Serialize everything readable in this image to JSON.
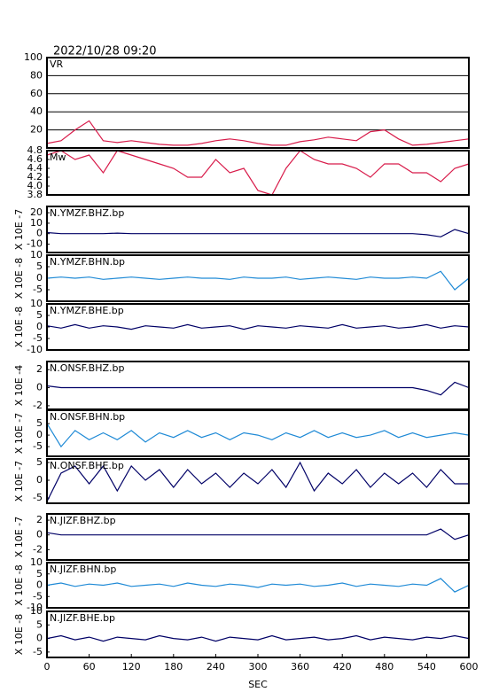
{
  "chart_data": [
    {
      "type": "line",
      "title": "2022/10/28 09:20",
      "label": "VR",
      "color": "#d81b4a",
      "grid": true,
      "x": [
        0,
        20,
        40,
        60,
        80,
        100,
        120,
        140,
        160,
        180,
        200,
        220,
        240,
        260,
        280,
        300,
        320,
        340,
        360,
        380,
        400,
        420,
        440,
        460,
        480,
        500,
        520,
        540,
        560,
        580,
        600
      ],
      "values": [
        5,
        8,
        20,
        30,
        8,
        6,
        8,
        6,
        4,
        3,
        3,
        5,
        8,
        10,
        8,
        5,
        3,
        3,
        7,
        9,
        12,
        10,
        8,
        18,
        20,
        10,
        3,
        4,
        6,
        8,
        10
      ],
      "xlim": [
        0,
        600
      ],
      "ylim": [
        0,
        100
      ],
      "yticks": [
        20,
        40,
        60,
        80,
        100
      ]
    },
    {
      "type": "line",
      "label": "Mw",
      "color": "#d81b4a",
      "x": [
        0,
        20,
        40,
        60,
        80,
        100,
        120,
        140,
        160,
        180,
        200,
        220,
        240,
        260,
        280,
        300,
        320,
        340,
        360,
        380,
        400,
        420,
        440,
        460,
        480,
        500,
        520,
        540,
        560,
        580,
        600
      ],
      "values": [
        4.7,
        4.8,
        4.6,
        4.7,
        4.3,
        4.8,
        4.7,
        4.6,
        4.5,
        4.4,
        4.2,
        4.2,
        4.6,
        4.3,
        4.4,
        3.9,
        3.8,
        4.4,
        4.8,
        4.6,
        4.5,
        4.5,
        4.4,
        4.2,
        4.5,
        4.5,
        4.3,
        4.3,
        4.1,
        4.4,
        4.5
      ],
      "xlim": [
        0,
        600
      ],
      "ylim": [
        3.8,
        4.8
      ],
      "yticks": [
        3.8,
        {
          "value": 4,
          "label": "4.0"
        },
        4.2,
        4.4,
        4.6,
        4.8
      ]
    },
    {
      "type": "line",
      "label": "N.YMZF.BHZ.bp",
      "ylabel": "X 10E -7",
      "color": "#000066",
      "x": [
        0,
        20,
        40,
        60,
        80,
        100,
        120,
        140,
        160,
        180,
        200,
        220,
        240,
        260,
        280,
        300,
        320,
        340,
        360,
        380,
        400,
        420,
        440,
        460,
        480,
        500,
        520,
        540,
        560,
        580,
        600
      ],
      "values": [
        1,
        0,
        0,
        0,
        0,
        0.5,
        0,
        0,
        0,
        0,
        0,
        0,
        0,
        0,
        0,
        0,
        0,
        0,
        0,
        0,
        0,
        0,
        0,
        0,
        0,
        0,
        0,
        -1,
        -3,
        4,
        0
      ],
      "xlim": [
        0,
        600
      ],
      "ylim": [
        -18,
        26
      ],
      "yticks": [
        -10,
        0,
        10,
        20
      ]
    },
    {
      "type": "line",
      "label": "N.YMZF.BHN.bp",
      "ylabel": "X 10E -8",
      "color": "#1f8ad6",
      "x": [
        0,
        20,
        40,
        60,
        80,
        100,
        120,
        140,
        160,
        180,
        200,
        220,
        240,
        260,
        280,
        300,
        320,
        340,
        360,
        380,
        400,
        420,
        440,
        460,
        480,
        500,
        520,
        540,
        560,
        580,
        600
      ],
      "values": [
        0,
        0.5,
        0,
        0.5,
        -0.5,
        0,
        0.5,
        0,
        -0.5,
        0,
        0.5,
        0,
        0,
        -0.5,
        0.5,
        0,
        0,
        0.5,
        -0.5,
        0,
        0.5,
        0,
        -0.5,
        0.5,
        0,
        0,
        0.5,
        0,
        3,
        -5,
        0
      ],
      "xlim": [
        0,
        600
      ],
      "ylim": [
        -10,
        10
      ],
      "yticks": [
        -5,
        0,
        5,
        10
      ]
    },
    {
      "type": "line",
      "label": "N.YMZF.BHE.bp",
      "ylabel": "X 10E -8",
      "color": "#000066",
      "x": [
        0,
        20,
        40,
        60,
        80,
        100,
        120,
        140,
        160,
        180,
        200,
        220,
        240,
        260,
        280,
        300,
        320,
        340,
        360,
        380,
        400,
        420,
        440,
        460,
        480,
        500,
        520,
        540,
        560,
        580,
        600
      ],
      "values": [
        0.5,
        -0.5,
        1,
        -0.5,
        0.5,
        0,
        -1,
        0.5,
        0,
        -0.5,
        1,
        -0.5,
        0,
        0.5,
        -1,
        0.5,
        0,
        -0.5,
        0.5,
        0,
        -0.5,
        1,
        -0.5,
        0,
        0.5,
        -0.5,
        0,
        1,
        -0.5,
        0.5,
        0
      ],
      "xlim": [
        0,
        600
      ],
      "ylim": [
        -10,
        10
      ],
      "yticks": [
        -10,
        -5,
        0,
        5,
        10
      ]
    },
    {
      "type": "line",
      "label": "N.ONSF.BHZ.bp",
      "ylabel": "X 10E -4",
      "color": "#000066",
      "x": [
        0,
        20,
        40,
        60,
        80,
        100,
        120,
        140,
        160,
        180,
        200,
        220,
        240,
        260,
        280,
        300,
        320,
        340,
        360,
        380,
        400,
        420,
        440,
        460,
        480,
        500,
        520,
        540,
        560,
        580,
        600
      ],
      "values": [
        0.2,
        0,
        0,
        0,
        0,
        0,
        0,
        0,
        0,
        0,
        0,
        0,
        0,
        0,
        0,
        0,
        0,
        0,
        0,
        0,
        0,
        0,
        0,
        0,
        0,
        0,
        0,
        -0.3,
        -0.8,
        0.6,
        0
      ],
      "xlim": [
        0,
        600
      ],
      "ylim": [
        -2.4,
        2.9
      ],
      "yticks": [
        -2,
        0,
        2
      ]
    },
    {
      "type": "line",
      "label": "N.ONSF.BHN.bp",
      "ylabel": "X 10E -7",
      "color": "#1f8ad6",
      "x": [
        0,
        20,
        40,
        60,
        80,
        100,
        120,
        140,
        160,
        180,
        200,
        220,
        240,
        260,
        280,
        300,
        320,
        340,
        360,
        380,
        400,
        420,
        440,
        460,
        480,
        500,
        520,
        540,
        560,
        580,
        600
      ],
      "values": [
        5,
        -5,
        2,
        -2,
        1,
        -2,
        2,
        -3,
        1,
        -1,
        2,
        -1,
        1,
        -2,
        1,
        0,
        -2,
        1,
        -1,
        2,
        -1,
        1,
        -1,
        0,
        2,
        -1,
        1,
        -1,
        0,
        1,
        0
      ],
      "xlim": [
        0,
        600
      ],
      "ylim": [
        -9.2,
        10.8
      ],
      "yticks": [
        -5,
        0,
        5
      ]
    },
    {
      "type": "line",
      "label": "N.ONSF.BHE.bp",
      "ylabel": "X 10E -7",
      "color": "#000066",
      "x": [
        0,
        20,
        40,
        60,
        80,
        100,
        120,
        140,
        160,
        180,
        200,
        220,
        240,
        260,
        280,
        300,
        320,
        340,
        360,
        380,
        400,
        420,
        440,
        460,
        480,
        500,
        520,
        540,
        560,
        580,
        600
      ],
      "values": [
        -6,
        2,
        4,
        -1,
        4,
        -3,
        4,
        0,
        3,
        -2,
        3,
        -1,
        2,
        -2,
        2,
        -1,
        3,
        -2,
        5,
        -3,
        2,
        -1,
        3,
        -2,
        2,
        -1,
        2,
        -2,
        3,
        -1,
        -1
      ],
      "xlim": [
        0,
        600
      ],
      "ylim": [
        -6.5,
        6
      ],
      "yticks": [
        -5,
        0,
        5
      ]
    },
    {
      "type": "line",
      "label": "N.JIZF.BHZ.bp",
      "ylabel": "X 10E -7",
      "color": "#000066",
      "x": [
        0,
        20,
        40,
        60,
        80,
        100,
        120,
        140,
        160,
        180,
        200,
        220,
        240,
        260,
        280,
        300,
        320,
        340,
        360,
        380,
        400,
        420,
        440,
        460,
        480,
        500,
        520,
        540,
        560,
        580,
        600
      ],
      "values": [
        0.3,
        0,
        0,
        0,
        0,
        0,
        0,
        0,
        0,
        0,
        0,
        0,
        0,
        0,
        0,
        0,
        0,
        0,
        0,
        0,
        0,
        0,
        0,
        0,
        0,
        0,
        0,
        0,
        0.8,
        -0.6,
        0
      ],
      "xlim": [
        0,
        600
      ],
      "ylim": [
        -3.4,
        2.85
      ],
      "yticks": [
        -2,
        0,
        2
      ]
    },
    {
      "type": "line",
      "label": "N.JIZF.BHN.bp",
      "ylabel": "X 10E -8",
      "color": "#1f8ad6",
      "x": [
        0,
        20,
        40,
        60,
        80,
        100,
        120,
        140,
        160,
        180,
        200,
        220,
        240,
        260,
        280,
        300,
        320,
        340,
        360,
        380,
        400,
        420,
        440,
        460,
        480,
        500,
        520,
        540,
        560,
        580,
        600
      ],
      "values": [
        0,
        1,
        -0.5,
        0.5,
        0,
        1,
        -0.5,
        0,
        0.5,
        -0.5,
        1,
        0,
        -0.5,
        0.5,
        0,
        -1,
        0.5,
        0,
        0.5,
        -0.5,
        0,
        1,
        -0.5,
        0.5,
        0,
        -0.5,
        0.5,
        0,
        3,
        -3,
        0
      ],
      "xlim": [
        0,
        600
      ],
      "ylim": [
        -10,
        10
      ],
      "yticks": [
        -10,
        -5,
        0,
        5,
        10
      ]
    },
    {
      "type": "line",
      "label": "N.JIZF.BHE.bp",
      "ylabel": "X 10E -8",
      "xlabel": "SEC",
      "color": "#000066",
      "x": [
        0,
        20,
        40,
        60,
        80,
        100,
        120,
        140,
        160,
        180,
        200,
        220,
        240,
        260,
        280,
        300,
        320,
        340,
        360,
        380,
        400,
        420,
        440,
        460,
        480,
        500,
        520,
        540,
        560,
        580,
        600
      ],
      "values": [
        0,
        1,
        -0.5,
        0.5,
        -1,
        0.5,
        0,
        -0.5,
        1,
        0,
        -0.5,
        0.5,
        -1,
        0.5,
        0,
        -0.5,
        1,
        -0.5,
        0,
        0.5,
        -0.5,
        0,
        1,
        -0.5,
        0.5,
        0,
        -0.5,
        0.5,
        0,
        1,
        0
      ],
      "xlim": [
        0,
        600
      ],
      "ylim": [
        -7,
        10
      ],
      "yticks": [
        -5,
        0,
        5,
        10
      ],
      "xticks": [
        0,
        60,
        120,
        180,
        240,
        300,
        360,
        420,
        480,
        540,
        600
      ]
    }
  ]
}
